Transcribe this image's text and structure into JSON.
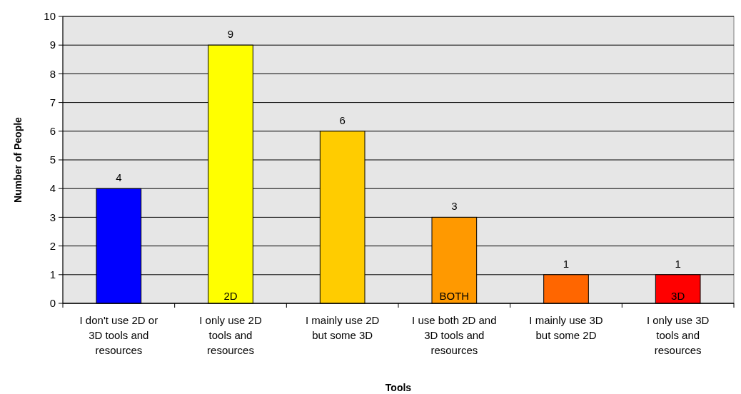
{
  "chart_data": {
    "type": "bar",
    "xlabel": "Tools",
    "ylabel": "Number of People",
    "categories": [
      "I don't use 2D or 3D tools and resources",
      "I only use 2D tools and resources",
      "I mainly use 2D but some 3D",
      "I use both 2D and 3D tools and resources",
      "I mainly use 3D but some 2D",
      "I only use 3D tools and resources"
    ],
    "values": [
      4,
      9,
      6,
      3,
      1,
      1
    ],
    "colors": [
      "#0000ff",
      "#ffff00",
      "#ffcc00",
      "#ff9900",
      "#ff6600",
      "#ff0000"
    ],
    "ylim": [
      0,
      10
    ],
    "yticks": [
      0,
      1,
      2,
      3,
      4,
      5,
      6,
      7,
      8,
      9,
      10
    ],
    "grid": "y",
    "data_labels": true,
    "annotations": [
      {
        "text": "2D",
        "x": "I only use 2D tools and resources",
        "y": 0
      },
      {
        "text": "BOTH",
        "x": "I use both 2D and 3D tools and resources",
        "y": 0
      },
      {
        "text": "3D",
        "x": "I only use 3D tools and resources",
        "y": 0
      }
    ]
  }
}
